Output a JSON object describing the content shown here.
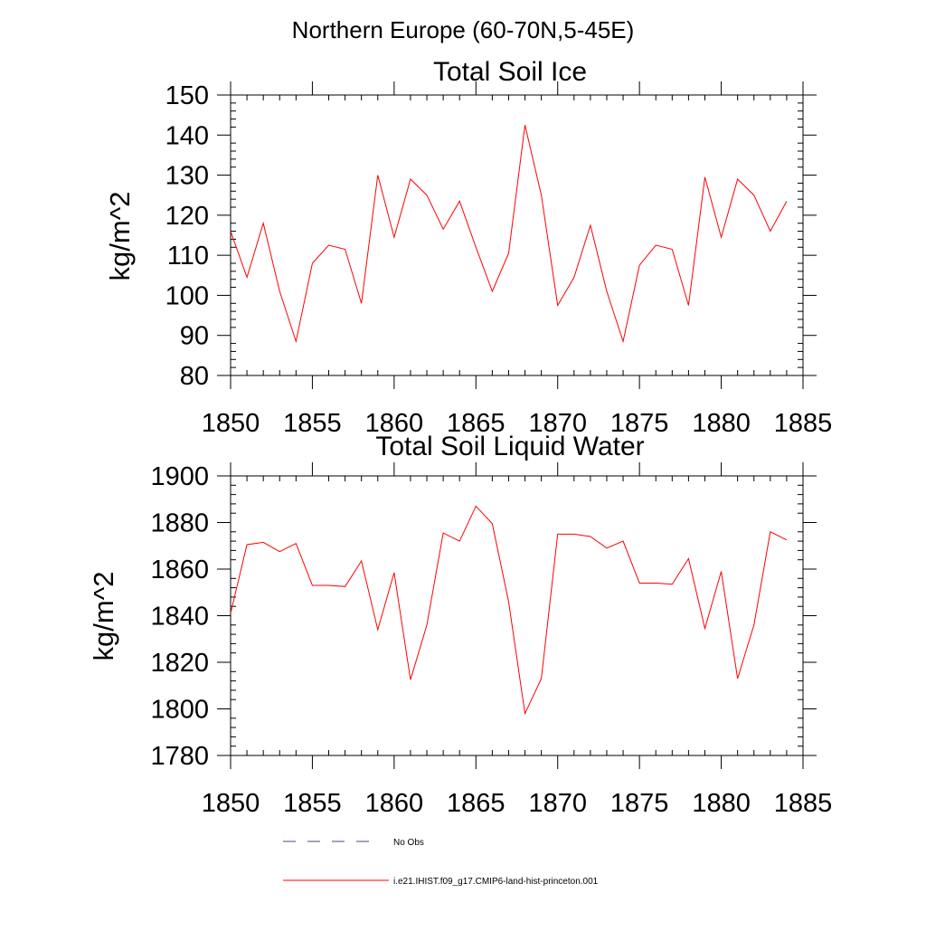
{
  "figure": {
    "title": "Northern Europe (60-70N,5-45E)"
  },
  "colors": {
    "series": "#ff0000",
    "obs": "#4a4a8a",
    "axis": "#000000"
  },
  "legend": {
    "items": [
      {
        "label": "No Obs",
        "style": "dashed",
        "color": "#4a4a8a"
      },
      {
        "label": "i.e21.IHIST.f09_g17.CMIP6-land-hist-princeton.001",
        "style": "solid",
        "color": "#ff0000"
      }
    ]
  },
  "chart_data": [
    {
      "type": "line",
      "title": "Total Soil Ice",
      "xlabel": "",
      "ylabel": "kg/m^2",
      "xlim": [
        1850,
        1885
      ],
      "ylim": [
        80,
        150
      ],
      "x_major_ticks": [
        1850,
        1855,
        1860,
        1865,
        1870,
        1875,
        1880,
        1885
      ],
      "y_major_ticks": [
        80,
        90,
        100,
        110,
        120,
        130,
        140,
        150
      ],
      "y_minor_step": 2,
      "x_minor_step": 1,
      "x_tick_labels": [
        "1850",
        "1855",
        "1860",
        "1865",
        "1870",
        "1875",
        "1880",
        "1885"
      ],
      "y_tick_labels": [
        "80",
        "90",
        "100",
        "110",
        "120",
        "130",
        "140",
        "150"
      ],
      "grid": false,
      "series": [
        {
          "name": "i.e21.IHIST.f09_g17.CMIP6-land-hist-princeton.001",
          "color": "#ff0000",
          "x": [
            1850,
            1851,
            1852,
            1853,
            1854,
            1855,
            1856,
            1857,
            1858,
            1859,
            1860,
            1861,
            1862,
            1863,
            1864,
            1865,
            1866,
            1867,
            1868,
            1869,
            1870,
            1871,
            1872,
            1873,
            1874,
            1875,
            1876,
            1877,
            1878,
            1879,
            1880,
            1881,
            1882,
            1883,
            1884
          ],
          "values": [
            116,
            104.5,
            118,
            101,
            88.5,
            108,
            112.5,
            111.5,
            98,
            130,
            114.5,
            129,
            125,
            116.5,
            123.5,
            112,
            101,
            110.5,
            142.5,
            125,
            97.5,
            104.5,
            117.5,
            101,
            88.5,
            107.5,
            112.5,
            111.5,
            97.5,
            129.5,
            114.5,
            129,
            125,
            116,
            123.5
          ]
        }
      ]
    },
    {
      "type": "line",
      "title": "Total Soil Liquid Water",
      "xlabel": "",
      "ylabel": "kg/m^2",
      "xlim": [
        1850,
        1885
      ],
      "ylim": [
        1780,
        1900
      ],
      "x_major_ticks": [
        1850,
        1855,
        1860,
        1865,
        1870,
        1875,
        1880,
        1885
      ],
      "y_major_ticks": [
        1780,
        1800,
        1820,
        1840,
        1860,
        1880,
        1900
      ],
      "y_minor_step": 4,
      "x_minor_step": 1,
      "x_tick_labels": [
        "1850",
        "1855",
        "1860",
        "1865",
        "1870",
        "1875",
        "1880",
        "1885"
      ],
      "y_tick_labels": [
        "1780",
        "1800",
        "1820",
        "1840",
        "1860",
        "1880",
        "1900"
      ],
      "grid": false,
      "series": [
        {
          "name": "i.e21.IHIST.f09_g17.CMIP6-land-hist-princeton.001",
          "color": "#ff0000",
          "x": [
            1850,
            1851,
            1852,
            1853,
            1854,
            1855,
            1856,
            1857,
            1858,
            1859,
            1860,
            1861,
            1862,
            1863,
            1864,
            1865,
            1866,
            1867,
            1868,
            1869,
            1870,
            1871,
            1872,
            1873,
            1874,
            1875,
            1876,
            1877,
            1878,
            1879,
            1880,
            1881,
            1882,
            1883,
            1884
          ],
          "values": [
            1841,
            1870.5,
            1871.5,
            1867.5,
            1871,
            1853,
            1853,
            1852.5,
            1863.5,
            1834,
            1858.5,
            1812.5,
            1836,
            1875.5,
            1872,
            1887,
            1879.5,
            1846,
            1798,
            1813,
            1875,
            1875,
            1874,
            1869,
            1872,
            1854,
            1854,
            1853.5,
            1864.5,
            1834.5,
            1859,
            1813,
            1836,
            1876,
            1872.5
          ]
        }
      ]
    }
  ]
}
